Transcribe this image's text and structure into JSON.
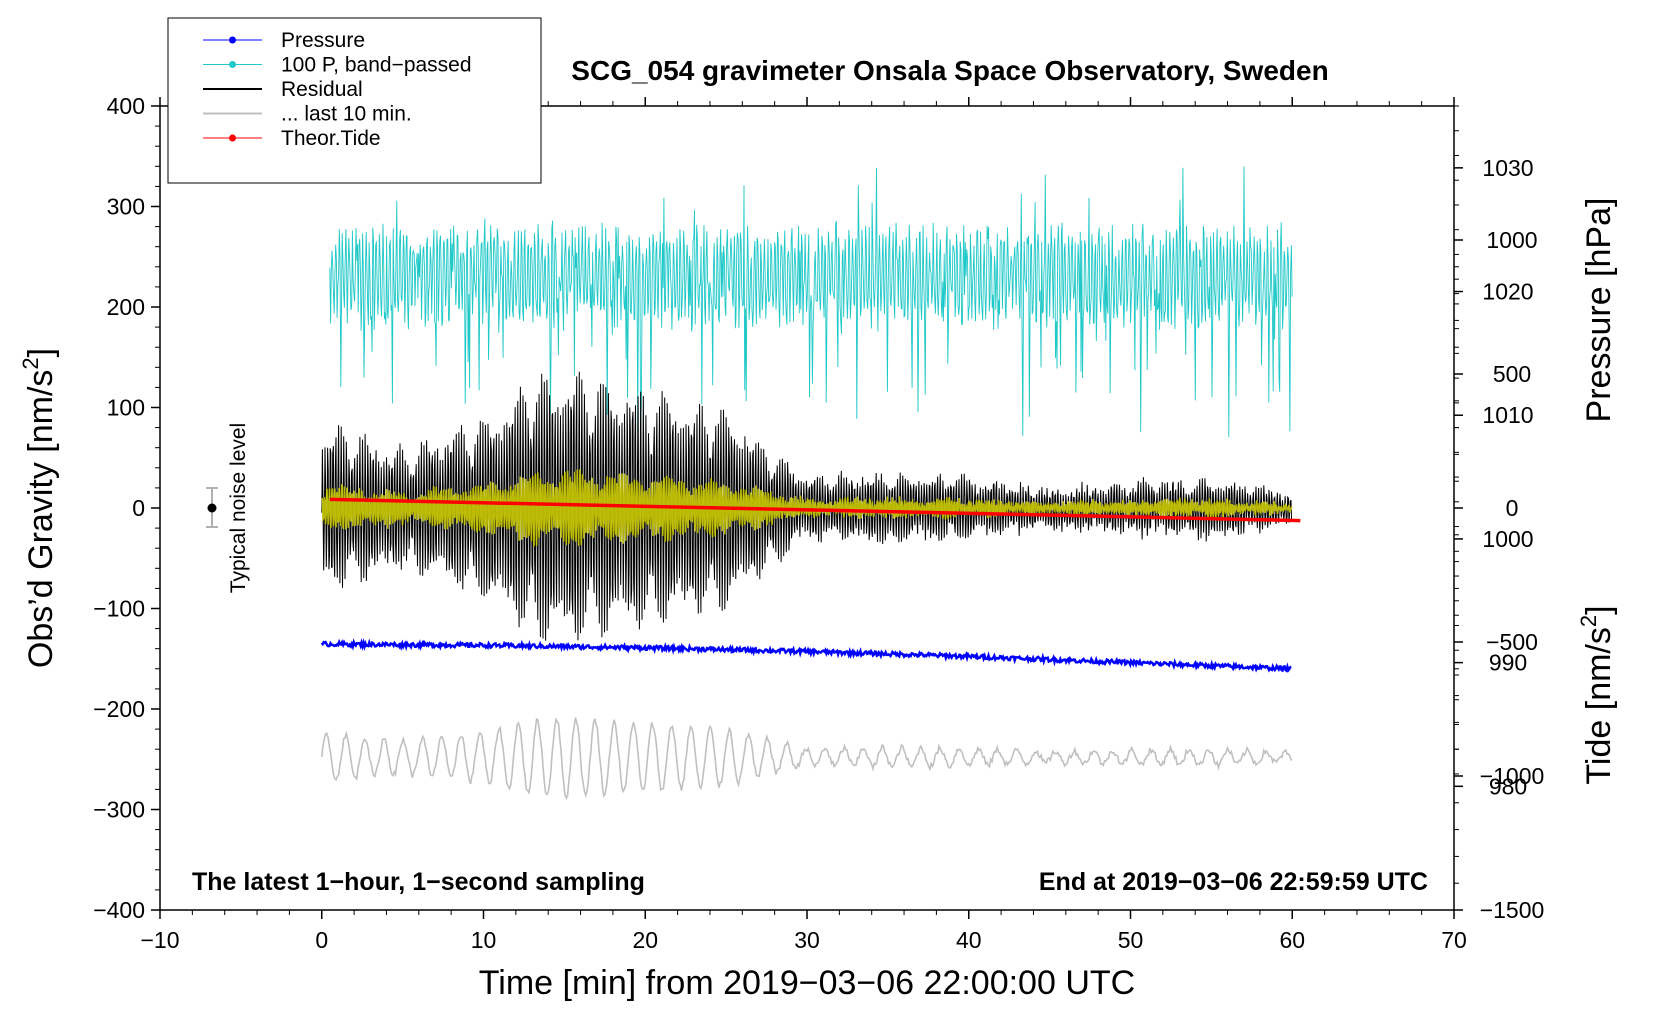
{
  "chart_data": {
    "type": "line",
    "title": "SCG_054 gravimeter Onsala Space Observatory, Sweden",
    "xlabel": "Time [min] from 2019−03−06 22:00:00 UTC",
    "ylabel_left_main": "Obs’d Gravity [nm/s",
    "ylabel_left_sup": "2",
    "ylabel_left_end": "]",
    "ylabel_right_pressure": "Pressure [hPa]",
    "ylabel_right_tide_main": "Tide [nm/s",
    "ylabel_right_tide_sup": "2",
    "ylabel_right_tide_end": "]",
    "xlim": [
      -10,
      70
    ],
    "ylim": [
      -400,
      400
    ],
    "pressure_axis_range_hPa": [
      970,
      1035
    ],
    "tide_axis_range": [
      -1500,
      1500
    ],
    "x_ticks": [
      -10,
      0,
      10,
      20,
      30,
      40,
      50,
      60,
      70
    ],
    "x_tick_labels": [
      "−10",
      "0",
      "10",
      "20",
      "30",
      "40",
      "50",
      "60",
      "70"
    ],
    "y_ticks": [
      400,
      300,
      200,
      100,
      0,
      -100,
      -200,
      -300,
      -400
    ],
    "y_tick_labels": [
      "400",
      "300",
      "200",
      "100",
      "0",
      "−100",
      "−200",
      "−300",
      "−400"
    ],
    "pressure_ticks": [
      1030,
      1020,
      1010,
      1000,
      990,
      980
    ],
    "pressure_tick_labels": [
      "1030",
      "1020",
      "1010",
      "1000",
      "990",
      "980"
    ],
    "tide_ticks": [
      1000,
      500,
      0,
      -500,
      -1000,
      -1500
    ],
    "tide_tick_labels": [
      "1000",
      "500",
      "0",
      "−500",
      "−1000",
      "−1500"
    ],
    "annotation_left": "The latest 1−hour, 1−second sampling",
    "annotation_right": "End at 2019−03−06 22:59:59 UTC",
    "noise_label": "Typical noise level",
    "noise_bar": {
      "x": -7,
      "center": 0,
      "half_range": 20
    },
    "legend": [
      {
        "label": "Pressure",
        "color": "#0000ff",
        "marker": true
      },
      {
        "label": "100 P, band−passed",
        "color": "#20c8c8",
        "marker": true
      },
      {
        "label": "Residual",
        "color": "#000000",
        "marker": false
      },
      {
        "label": "... last 10 min.",
        "color": "#c0c0c0",
        "marker": false
      },
      {
        "label": "Theor.Tide",
        "color": "#ff0000",
        "marker": true
      }
    ],
    "series": [
      {
        "name": "Pressure",
        "color": "#0000ff",
        "units": "hPa",
        "x": [
          0,
          10,
          20,
          30,
          40,
          50,
          60
        ],
        "values": [
          991.5,
          991.4,
          991.2,
          990.9,
          990.5,
          990.0,
          989.5
        ]
      },
      {
        "name": "100 P, band−passed",
        "color": "#20c8c8",
        "units": "nm/s2",
        "x_range": [
          0.5,
          60
        ],
        "center": 230,
        "amplitude": 50
      },
      {
        "name": "Residual",
        "color": "#000000",
        "units": "nm/s2",
        "x": [
          0,
          5,
          10,
          13,
          15,
          20,
          25,
          30,
          35,
          40,
          45,
          50,
          55,
          60
        ],
        "envelope": [
          85,
          60,
          90,
          130,
          140,
          120,
          100,
          30,
          35,
          30,
          20,
          25,
          30,
          15
        ]
      },
      {
        "name": "... last 10 min.",
        "color": "#c0c0c0",
        "units": "nm/s2",
        "offset": -248,
        "x_range": [
          0,
          60
        ]
      },
      {
        "name": "Theor.Tide",
        "color": "#ff0000",
        "units": "nm/s2",
        "x": [
          0.5,
          60.5
        ],
        "values": [
          32,
          -47
        ]
      },
      {
        "name": "Filtered residual",
        "color": "#c8c800",
        "units": "nm/s2",
        "x_range": [
          0,
          60
        ]
      }
    ]
  }
}
